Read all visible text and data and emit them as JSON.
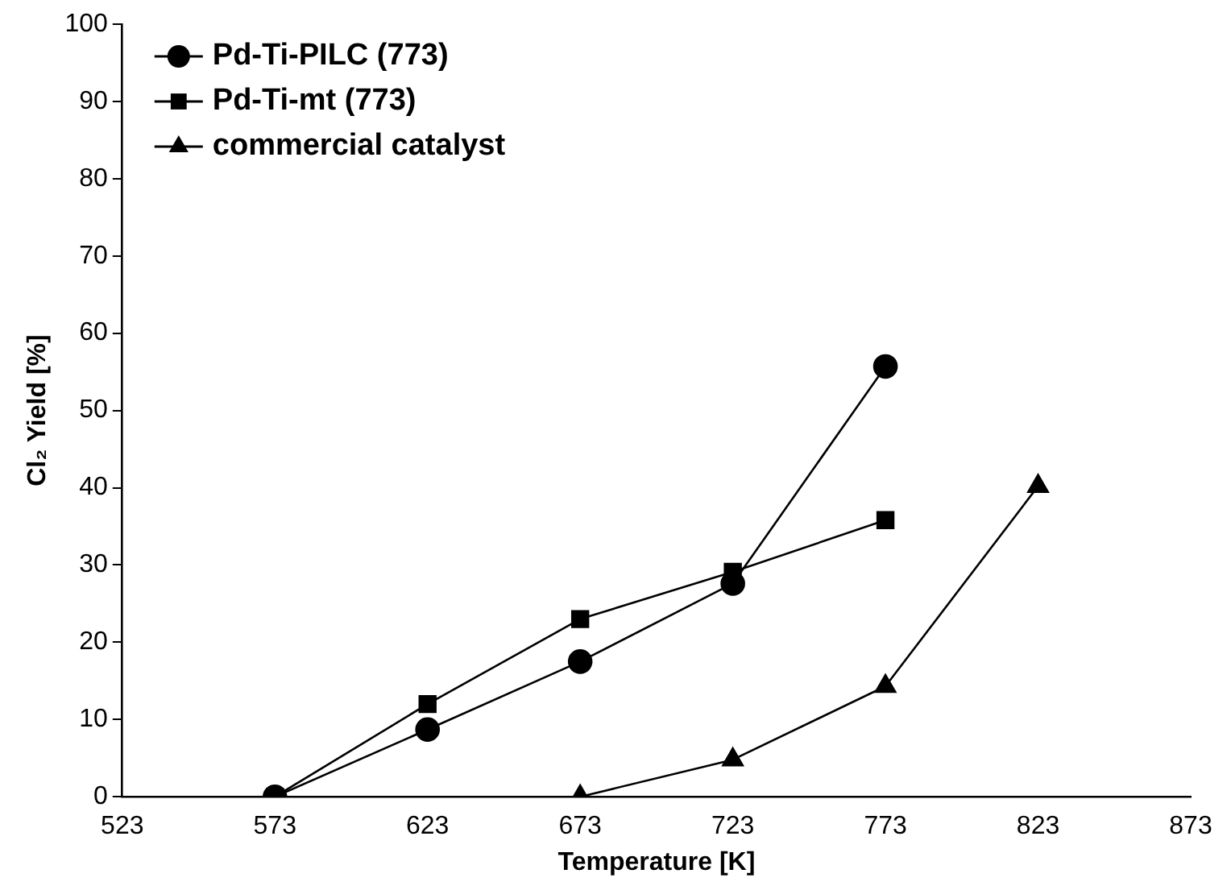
{
  "chart_data": {
    "type": "line",
    "xlabel": "Temperature [K]",
    "ylabel": "Cl₂ Yield [%]",
    "xlim": [
      523,
      873
    ],
    "xticks": [
      523,
      573,
      623,
      673,
      723,
      773,
      823,
      873
    ],
    "ylim": [
      0,
      100
    ],
    "yticks": [
      0,
      10,
      20,
      30,
      40,
      50,
      60,
      70,
      80,
      90,
      100
    ],
    "grid": false,
    "legend": "top left",
    "line_style": "solid",
    "series": [
      {
        "name": "Pd-Ti-PILC (773)",
        "color": "#000000",
        "marker": "circle",
        "x": [
          573,
          623,
          673,
          723,
          773
        ],
        "values": [
          0,
          8.7,
          17.5,
          27.6,
          55.7
        ]
      },
      {
        "name": "Pd-Ti-mt (773)",
        "color": "#000000",
        "marker": "square",
        "x": [
          573,
          623,
          673,
          723,
          773
        ],
        "values": [
          0,
          12,
          23,
          29.1,
          35.8
        ]
      },
      {
        "name": "commercial catalyst",
        "color": "#000000",
        "marker": "triangle",
        "x": [
          673,
          723,
          773,
          823
        ],
        "values": [
          0,
          4.8,
          14.3,
          40.2
        ]
      }
    ]
  }
}
